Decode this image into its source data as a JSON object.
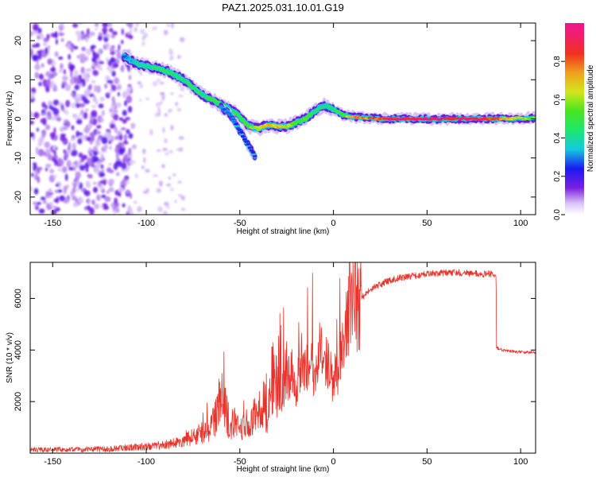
{
  "chart_data": [
    {
      "type": "heatmap",
      "title": "PAZ1.2025.031.10.01.G19",
      "xlabel": "Height of straight line (km)",
      "ylabel": "Frequency (Hz)",
      "xlim": [
        -162,
        108
      ],
      "ylim": [
        -24.5,
        24.5
      ],
      "x_ticks": [
        -150,
        -100,
        -50,
        0,
        50,
        100
      ],
      "y_ticks": [
        -20,
        -10,
        0,
        10,
        20
      ],
      "colorbar": {
        "label": "Normalized spectral amplitude",
        "range": [
          0,
          1
        ],
        "ticks": [
          0.0,
          0.2,
          0.4,
          0.6,
          0.8
        ],
        "colormap": "rainbow"
      },
      "ridge": {
        "x": [
          -112,
          -105,
          -95,
          -88,
          -80,
          -75,
          -70,
          -65,
          -60,
          -55,
          -50,
          -45,
          -40,
          -35,
          -30,
          -25,
          -20,
          -15,
          -10,
          -5,
          0,
          5,
          10,
          20,
          30,
          50,
          80,
          108
        ],
        "freq": [
          16,
          14,
          13,
          12,
          10,
          8,
          6,
          5,
          3.5,
          2.5,
          0.5,
          -2,
          -2.5,
          -1.5,
          -2,
          -2,
          -1,
          0,
          2,
          3.5,
          2.5,
          1,
          0.5,
          0.2,
          0,
          0,
          0,
          0.2
        ],
        "amplitude": [
          0.3,
          0.4,
          0.45,
          0.5,
          0.45,
          0.5,
          0.45,
          0.5,
          0.5,
          0.45,
          0.5,
          0.55,
          0.65,
          0.75,
          0.75,
          0.65,
          0.55,
          0.55,
          0.45,
          0.4,
          0.45,
          0.55,
          0.75,
          0.85,
          0.95,
          1.0,
          0.95,
          0.55
        ]
      },
      "branch": {
        "x": [
          -60,
          -55,
          -50,
          -45,
          -42
        ],
        "freq": [
          3,
          1,
          -3,
          -7,
          -9.5
        ],
        "amplitude": [
          0.3,
          0.3,
          0.25,
          0.25,
          0.2
        ]
      },
      "noise_region_x": [
        -162,
        -112
      ]
    },
    {
      "type": "line",
      "xlabel": "Height of straight line (km)",
      "ylabel": "SNR (10 * v/v)",
      "xlim": [
        -162,
        108
      ],
      "ylim": [
        0,
        7400
      ],
      "x_ticks": [
        -150,
        -100,
        -50,
        0,
        50,
        100
      ],
      "y_ticks": [
        2000,
        4000,
        6000
      ],
      "color": "#e8322a",
      "series": [
        {
          "x": [
            -162,
            -140,
            -120,
            -100,
            -90,
            -80,
            -75,
            -70,
            -65,
            -62,
            -60,
            -57,
            -55,
            -52,
            -50,
            -47,
            -45,
            -42,
            -40,
            -37,
            -35,
            -32,
            -30,
            -28,
            -25,
            -22,
            -20,
            -17,
            -15,
            -12,
            -10,
            -7,
            -5,
            -3,
            0,
            3,
            5,
            7,
            10,
            12,
            15,
            20,
            25,
            30,
            35,
            40,
            50,
            60,
            70,
            80,
            85,
            86.9,
            87.1,
            90,
            95,
            100,
            108
          ],
          "y": [
            120,
            140,
            160,
            260,
            320,
            470,
            620,
            800,
            1100,
            1600,
            2300,
            1600,
            900,
            1500,
            800,
            1200,
            900,
            1400,
            1100,
            2000,
            1300,
            3500,
            2200,
            2900,
            2800,
            3300,
            2400,
            3800,
            3100,
            3800,
            2800,
            4100,
            3400,
            3500,
            2800,
            3300,
            4200,
            5000,
            5800,
            5600,
            6000,
            6350,
            6550,
            6700,
            6800,
            6850,
            6950,
            7000,
            7000,
            6950,
            6950,
            6950,
            4100,
            4000,
            3950,
            3920,
            3900
          ]
        }
      ]
    }
  ]
}
